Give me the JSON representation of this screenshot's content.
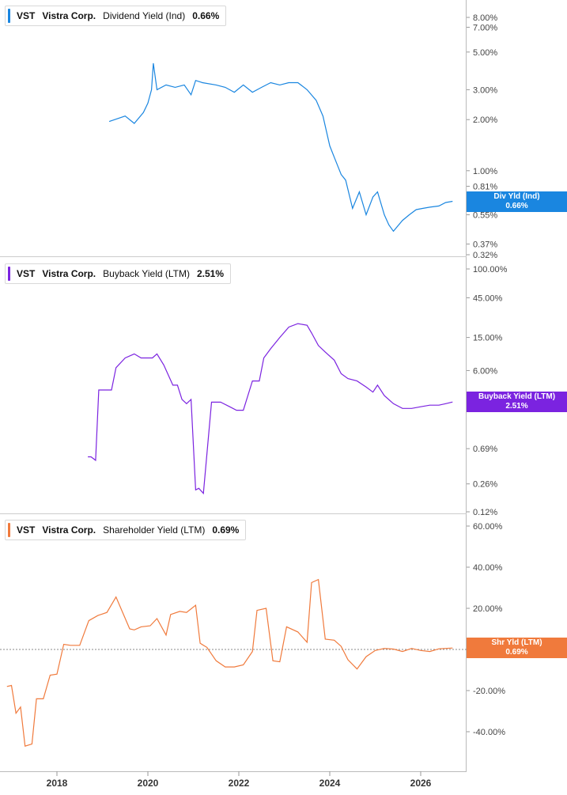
{
  "colors": {
    "dividend": "#1a86e0",
    "buyback": "#7b23e0",
    "shareholder": "#f07a3c",
    "grid": "#bbbbbb"
  },
  "panels": {
    "dividend": {
      "ticker": "VST",
      "company": "Vistra Corp.",
      "metric": "Dividend Yield (Ind)",
      "value": "0.66%",
      "tag_title": "Div Yld (Ind)",
      "tag_value": "0.66%"
    },
    "buyback": {
      "ticker": "VST",
      "company": "Vistra Corp.",
      "metric": "Buyback Yield (LTM)",
      "value": "2.51%",
      "tag_title": "Buyback Yield (LTM)",
      "tag_value": "2.51%"
    },
    "shareholder": {
      "ticker": "VST",
      "company": "Vistra Corp.",
      "metric": "Shareholder Yield (LTM)",
      "value": "0.69%",
      "tag_title": "Shr Yld (LTM)",
      "tag_value": "0.69%"
    }
  },
  "chart_data": [
    {
      "type": "line",
      "scale": "log",
      "series": [
        {
          "name": "Dividend Yield (Ind)",
          "color": "#1a86e0",
          "x": [
            2019.15,
            2019.5,
            2019.7,
            2019.9,
            2020.0,
            2020.08,
            2020.12,
            2020.2,
            2020.4,
            2020.6,
            2020.8,
            2020.95,
            2021.05,
            2021.2,
            2021.5,
            2021.7,
            2021.9,
            2022.1,
            2022.3,
            2022.5,
            2022.7,
            2022.9,
            2023.1,
            2023.3,
            2023.5,
            2023.7,
            2023.85,
            2024.0,
            2024.1,
            2024.25,
            2024.35,
            2024.5,
            2024.65,
            2024.8,
            2024.95,
            2025.05,
            2025.2,
            2025.3,
            2025.4,
            2025.6,
            2025.75,
            2025.9,
            2026.05,
            2026.2,
            2026.4,
            2026.55,
            2026.7
          ],
          "values": [
            1.95,
            2.1,
            1.9,
            2.2,
            2.5,
            3.0,
            4.3,
            3.0,
            3.2,
            3.1,
            3.2,
            2.8,
            3.4,
            3.3,
            3.2,
            3.1,
            2.9,
            3.2,
            2.9,
            3.1,
            3.3,
            3.2,
            3.3,
            3.3,
            3.0,
            2.6,
            2.1,
            1.4,
            1.2,
            0.95,
            0.88,
            0.6,
            0.75,
            0.55,
            0.7,
            0.75,
            0.55,
            0.48,
            0.44,
            0.51,
            0.55,
            0.59,
            0.6,
            0.61,
            0.62,
            0.65,
            0.66
          ]
        }
      ],
      "y_ticks": [
        "0.32%",
        "0.37%",
        "0.55%",
        "0.81%",
        "1.00%",
        "2.00%",
        "3.00%",
        "5.00%",
        "7.00%",
        "8.00%"
      ],
      "last_value": 0.66
    },
    {
      "type": "line",
      "scale": "log",
      "series": [
        {
          "name": "Buyback Yield (LTM)",
          "color": "#7b23e0",
          "x": [
            2018.68,
            2018.75,
            2018.85,
            2018.92,
            2019.0,
            2019.2,
            2019.3,
            2019.5,
            2019.7,
            2019.85,
            2020.1,
            2020.2,
            2020.35,
            2020.55,
            2020.65,
            2020.75,
            2020.85,
            2020.95,
            2021.05,
            2021.12,
            2021.22,
            2021.4,
            2021.6,
            2021.8,
            2021.95,
            2022.1,
            2022.3,
            2022.45,
            2022.55,
            2022.7,
            2022.9,
            2023.1,
            2023.3,
            2023.5,
            2023.6,
            2023.75,
            2023.9,
            2024.1,
            2024.25,
            2024.4,
            2024.6,
            2024.8,
            2024.95,
            2025.05,
            2025.2,
            2025.4,
            2025.6,
            2025.8,
            2026.0,
            2026.2,
            2026.4,
            2026.55,
            2026.7
          ],
          "values": [
            0.55,
            0.55,
            0.5,
            3.5,
            3.5,
            3.5,
            6.5,
            8.5,
            9.5,
            8.5,
            8.5,
            9.5,
            7.0,
            4.0,
            4.0,
            2.7,
            2.4,
            2.7,
            0.22,
            0.23,
            0.2,
            2.5,
            2.5,
            2.2,
            2.0,
            2.0,
            4.5,
            4.5,
            8.5,
            11.0,
            15.0,
            20.0,
            22.0,
            21.0,
            17.0,
            12.0,
            10.0,
            8.0,
            5.5,
            4.8,
            4.5,
            3.8,
            3.3,
            4.0,
            3.0,
            2.4,
            2.1,
            2.1,
            2.2,
            2.3,
            2.3,
            2.4,
            2.51
          ]
        }
      ],
      "y_ticks": [
        "0.12%",
        "0.26%",
        "0.69%",
        "2.51%",
        "6.00%",
        "15.00%",
        "45.00%",
        "100.00%"
      ],
      "last_value": 2.51
    },
    {
      "type": "line",
      "scale": "linear",
      "series": [
        {
          "name": "Shareholder Yield (LTM)",
          "color": "#f07a3c",
          "x": [
            2016.9,
            2017.0,
            2017.1,
            2017.2,
            2017.3,
            2017.45,
            2017.55,
            2017.7,
            2017.85,
            2018.0,
            2018.15,
            2018.3,
            2018.5,
            2018.7,
            2018.9,
            2019.1,
            2019.3,
            2019.6,
            2019.7,
            2019.85,
            2020.05,
            2020.2,
            2020.4,
            2020.5,
            2020.7,
            2020.85,
            2021.05,
            2021.15,
            2021.3,
            2021.5,
            2021.7,
            2021.9,
            2022.1,
            2022.3,
            2022.4,
            2022.6,
            2022.75,
            2022.9,
            2023.05,
            2023.3,
            2023.5,
            2023.6,
            2023.75,
            2023.9,
            2024.1,
            2024.25,
            2024.4,
            2024.6,
            2024.8,
            2025.0,
            2025.2,
            2025.4,
            2025.6,
            2025.8,
            2026.0,
            2026.2,
            2026.4,
            2026.55,
            2026.7
          ],
          "values": [
            -18.0,
            -17.5,
            -31.0,
            -28.0,
            -47.0,
            -46.0,
            -24.0,
            -24.0,
            -12.5,
            -12.0,
            2.5,
            2.0,
            2.0,
            14.0,
            16.5,
            18.0,
            25.5,
            10.0,
            9.5,
            11.0,
            11.5,
            15.0,
            7.0,
            17.0,
            18.5,
            18.0,
            21.5,
            3.0,
            1.0,
            -5.5,
            -8.5,
            -8.5,
            -7.5,
            -1.0,
            19.0,
            20.0,
            -5.5,
            -6.0,
            11.0,
            8.5,
            3.5,
            32.5,
            34.0,
            5.0,
            4.5,
            1.5,
            -5.0,
            -9.5,
            -3.5,
            -0.5,
            0.5,
            0.2,
            -1.0,
            0.5,
            -0.5,
            -1.0,
            0.3,
            0.5,
            0.69
          ]
        }
      ],
      "y_ticks": [
        "-40.00%",
        "-20.00%",
        "0.00%",
        "20.00%",
        "40.00%",
        "60.00%"
      ],
      "last_value": 0.69
    }
  ],
  "x_axis": {
    "ticks": [
      "2018",
      "2020",
      "2022",
      "2024",
      "2026"
    ]
  }
}
